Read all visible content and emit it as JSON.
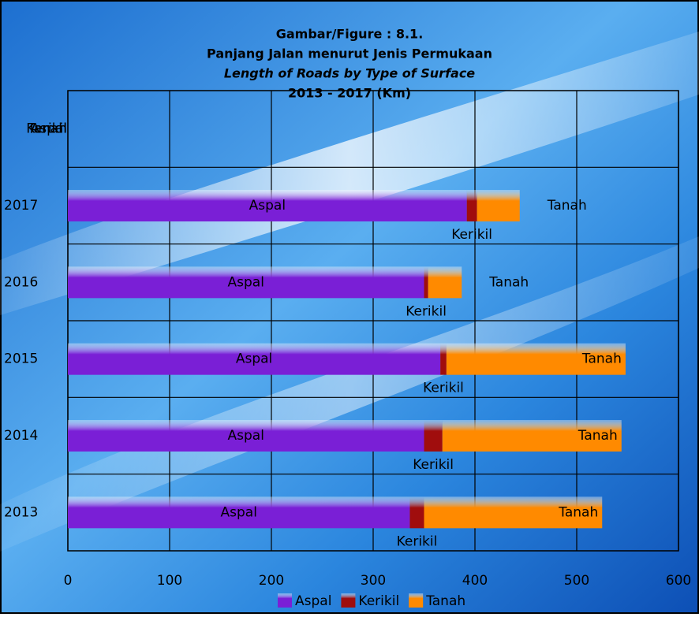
{
  "chart_data": {
    "type": "stacked-bar-horizontal",
    "title_lines": [
      "Gambar/Figure : 8.1.",
      "Panjang Jalan menurut Jenis Permukaan",
      "Length of Roads by Type of Surface",
      "2013 - 2017 (Km)"
    ],
    "categories": [
      null,
      "2017",
      "2016",
      "2015",
      "2014",
      "2013"
    ],
    "series": [
      {
        "name": "Aspal",
        "color": "#7a1fd6",
        "values": [
          0,
          392,
          350,
          366,
          350,
          336
        ]
      },
      {
        "name": "Kerikil",
        "color": "#a00d0d",
        "values": [
          0,
          10,
          4,
          6,
          18,
          14
        ]
      },
      {
        "name": "Tanah",
        "color": "#ff8a00",
        "values": [
          0,
          42,
          33,
          176,
          176,
          175
        ]
      }
    ],
    "xlim": [
      0,
      600
    ],
    "xticks": [
      0,
      100,
      200,
      300,
      400,
      500,
      600
    ],
    "grid": true
  }
}
